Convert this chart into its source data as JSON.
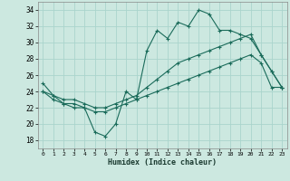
{
  "xlabel": "Humidex (Indice chaleur)",
  "background_color": "#cce8e0",
  "grid_color": "#aad4cc",
  "line_color": "#1a6b5a",
  "xlim": [
    -0.5,
    23.5
  ],
  "ylim": [
    17,
    35
  ],
  "yticks": [
    18,
    20,
    22,
    24,
    26,
    28,
    30,
    32,
    34
  ],
  "xticks": [
    0,
    1,
    2,
    3,
    4,
    5,
    6,
    7,
    8,
    9,
    10,
    11,
    12,
    13,
    14,
    15,
    16,
    17,
    18,
    19,
    20,
    21,
    22,
    23
  ],
  "series1_x": [
    0,
    1,
    2,
    3,
    4,
    5,
    6,
    7,
    8,
    9,
    10,
    11,
    12,
    13,
    14,
    15,
    16,
    17,
    18,
    19,
    20,
    21,
    22,
    23
  ],
  "series1_y": [
    25.0,
    23.5,
    22.5,
    22.0,
    22.0,
    19.0,
    18.5,
    20.0,
    24.0,
    23.0,
    29.0,
    31.5,
    30.5,
    32.5,
    32.0,
    34.0,
    33.5,
    31.5,
    31.5,
    31.0,
    30.5,
    28.5,
    26.5,
    24.5
  ],
  "series2_x": [
    0,
    1,
    2,
    3,
    4,
    5,
    6,
    7,
    8,
    9,
    10,
    11,
    12,
    13,
    14,
    15,
    16,
    17,
    18,
    19,
    20,
    21,
    22,
    23
  ],
  "series2_y": [
    24.0,
    23.5,
    23.0,
    23.0,
    22.5,
    22.0,
    22.0,
    22.5,
    23.0,
    23.5,
    24.5,
    25.5,
    26.5,
    27.5,
    28.0,
    28.5,
    29.0,
    29.5,
    30.0,
    30.5,
    31.0,
    28.5,
    26.5,
    24.5
  ],
  "series3_x": [
    0,
    1,
    2,
    3,
    4,
    5,
    6,
    7,
    8,
    9,
    10,
    11,
    12,
    13,
    14,
    15,
    16,
    17,
    18,
    19,
    20,
    21,
    22,
    23
  ],
  "series3_y": [
    24.0,
    23.0,
    22.5,
    22.5,
    22.0,
    21.5,
    21.5,
    22.0,
    22.5,
    23.0,
    23.5,
    24.0,
    24.5,
    25.0,
    25.5,
    26.0,
    26.5,
    27.0,
    27.5,
    28.0,
    28.5,
    27.5,
    24.5,
    24.5
  ]
}
